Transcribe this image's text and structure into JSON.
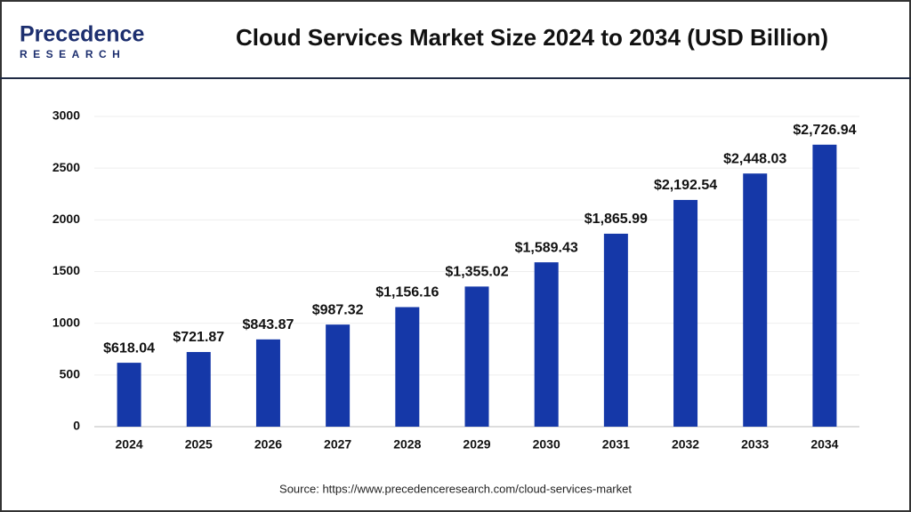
{
  "logo": {
    "name": "Precedence",
    "tagline": "RESEARCH"
  },
  "source": "Source: https://www.precedenceresearch.com/cloud-services-market",
  "chart_data": {
    "type": "bar",
    "title": "Cloud Services Market Size 2024 to 2034 (USD Billion)",
    "categories": [
      "2024",
      "2025",
      "2026",
      "2027",
      "2028",
      "2029",
      "2030",
      "2031",
      "2032",
      "2033",
      "2034"
    ],
    "values": [
      618.04,
      721.87,
      843.87,
      987.32,
      1156.16,
      1355.02,
      1589.43,
      1865.99,
      2192.54,
      2448.03,
      2726.94
    ],
    "value_labels": [
      "$618.04",
      "$721.87",
      "$843.87",
      "$987.32",
      "$1,156.16",
      "$1,355.02",
      "$1,589.43",
      "$1,865.99",
      "$2,192.54",
      "$2,448.03",
      "$2,726.94"
    ],
    "color": "#1538a8",
    "ylim": [
      0,
      3000
    ],
    "yticks": [
      0,
      500,
      1000,
      1500,
      2000,
      2500,
      3000
    ],
    "grid": true
  }
}
